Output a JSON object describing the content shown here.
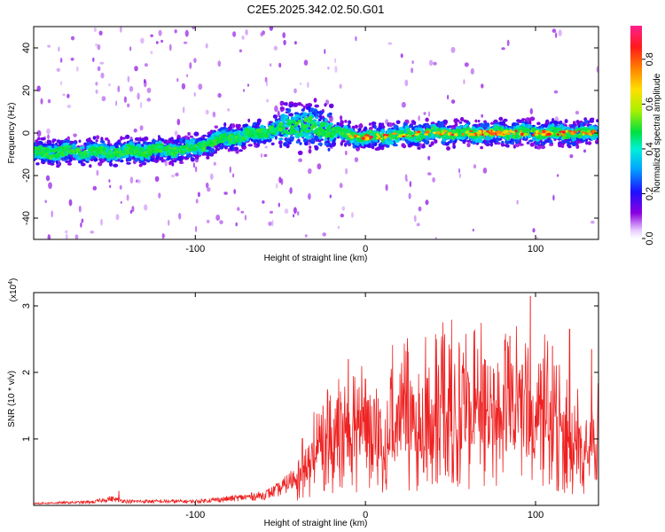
{
  "title": "C2E5.2025.342.02.50.G01",
  "colors": {
    "snr_line": "#ee2222",
    "axes": "#000000"
  },
  "chart_data": [
    {
      "type": "heatmap",
      "xlabel": "Height of straight line (km)",
      "ylabel": "Frequency (Hz)",
      "xlim": [
        -195,
        137
      ],
      "ylim": [
        -50,
        50
      ],
      "xticks": [
        -100,
        0,
        100
      ],
      "yticks": [
        -40,
        -20,
        0,
        20,
        40
      ],
      "colorbar": {
        "label": "Normalized spectral amplitude",
        "range": [
          0.0,
          0.95
        ],
        "ticks": [
          0.0,
          0.2,
          0.4,
          0.6,
          0.8
        ],
        "colormap": "rainbow (purple to red)"
      },
      "ridge_centerline": [
        [
          -195,
          -9
        ],
        [
          -150,
          -9
        ],
        [
          -120,
          -8
        ],
        [
          -100,
          -7
        ],
        [
          -90,
          -4
        ],
        [
          -70,
          -1
        ],
        [
          -50,
          2
        ],
        [
          -40,
          3
        ],
        [
          -30,
          3
        ],
        [
          -20,
          1
        ],
        [
          -10,
          -1
        ],
        [
          0,
          -2
        ],
        [
          20,
          -1
        ],
        [
          40,
          0
        ],
        [
          60,
          0
        ],
        [
          80,
          0
        ],
        [
          100,
          0
        ],
        [
          120,
          0
        ],
        [
          137,
          0
        ]
      ]
    },
    {
      "type": "line",
      "xlabel": "Height of straight line (km)",
      "ylabel": "SNR (10 * v/v)",
      "y_multiplier": "(x10^4)",
      "xlim": [
        -195,
        137
      ],
      "ylim": [
        0,
        3.2
      ],
      "xticks": [
        -100,
        0,
        100
      ],
      "yticks": [
        1,
        2,
        3
      ],
      "envelope": [
        [
          -195,
          0.03
        ],
        [
          -160,
          0.05
        ],
        [
          -150,
          0.1
        ],
        [
          -140,
          0.06
        ],
        [
          -100,
          0.06
        ],
        [
          -80,
          0.1
        ],
        [
          -60,
          0.15
        ],
        [
          -50,
          0.25
        ],
        [
          -40,
          0.45
        ],
        [
          -30,
          0.75
        ],
        [
          -20,
          1.0
        ],
        [
          -10,
          1.05
        ],
        [
          0,
          1.15
        ],
        [
          20,
          1.3
        ],
        [
          40,
          1.45
        ],
        [
          60,
          1.5
        ],
        [
          80,
          1.55
        ],
        [
          100,
          1.45
        ],
        [
          110,
          1.3
        ],
        [
          120,
          1.0
        ],
        [
          130,
          0.9
        ],
        [
          137,
          1.3
        ]
      ],
      "peaks": [
        [
          -145,
          0.22
        ],
        [
          -25,
          1.5
        ],
        [
          -10,
          2.2
        ],
        [
          0,
          1.9
        ],
        [
          25,
          2.3
        ],
        [
          50,
          2.35
        ],
        [
          70,
          2.2
        ],
        [
          85,
          2.55
        ],
        [
          97,
          3.15
        ],
        [
          110,
          2.4
        ],
        [
          120,
          2.65
        ],
        [
          133,
          2.35
        ]
      ]
    }
  ]
}
